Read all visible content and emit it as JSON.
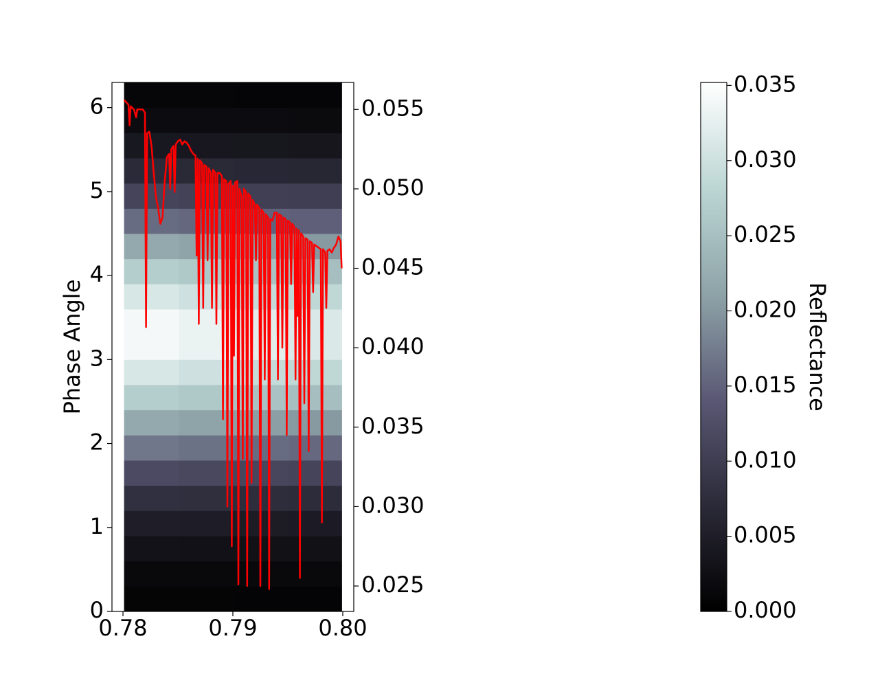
{
  "chart_data": {
    "type": "heatmap",
    "ylabel": "Phase Angle",
    "xlim": [
      0.779,
      0.801
    ],
    "xticks": [
      0.78,
      0.79,
      {
        "value": 0.8,
        "label": "0.80"
      }
    ],
    "ylim": [
      0,
      6.3
    ],
    "yticks": [
      0,
      1,
      2,
      3,
      4,
      5,
      6
    ],
    "y2lim": [
      0.0234,
      0.0567
    ],
    "y2ticks": [
      {
        "value": 0.025,
        "label": "0.025"
      },
      {
        "value": 0.03,
        "label": "0.030"
      },
      {
        "value": 0.035,
        "label": "0.035"
      },
      {
        "value": 0.04,
        "label": "0.040"
      },
      {
        "value": 0.045,
        "label": "0.045"
      },
      {
        "value": 0.05,
        "label": "0.050"
      },
      0.055
    ],
    "x_edges": [
      0.7801,
      0.7851,
      0.7901,
      0.7951,
      0.7999
    ],
    "y_edges": [
      0,
      0.3,
      0.6,
      0.9,
      1.2,
      1.5,
      1.8,
      2.1,
      2.4,
      2.7,
      3.0,
      3.3,
      3.6,
      3.9,
      4.2,
      4.5,
      4.8,
      5.1,
      5.4,
      5.7,
      6.0,
      6.3
    ],
    "z": [
      [
        0.0008,
        0.0008,
        0.0007,
        0.0007
      ],
      [
        0.0015,
        0.0015,
        0.0014,
        0.0014
      ],
      [
        0.003,
        0.0029,
        0.0028,
        0.0028
      ],
      [
        0.005,
        0.0049,
        0.0047,
        0.0046
      ],
      [
        0.008,
        0.0078,
        0.0075,
        0.0074
      ],
      [
        0.012,
        0.0116,
        0.0113,
        0.011
      ],
      [
        0.017,
        0.0165,
        0.016,
        0.0156
      ],
      [
        0.022,
        0.0213,
        0.0207,
        0.0202
      ],
      [
        0.027,
        0.0262,
        0.0254,
        0.0248
      ],
      [
        0.031,
        0.0301,
        0.0291,
        0.0285
      ],
      [
        0.034,
        0.033,
        0.032,
        0.0313
      ],
      [
        0.034,
        0.033,
        0.032,
        0.0313
      ],
      [
        0.031,
        0.0301,
        0.0291,
        0.0285
      ],
      [
        0.027,
        0.0262,
        0.0254,
        0.0248
      ],
      [
        0.022,
        0.0213,
        0.0207,
        0.0202
      ],
      [
        0.016,
        0.0155,
        0.015,
        0.0147
      ],
      [
        0.011,
        0.0107,
        0.0103,
        0.0101
      ],
      [
        0.007,
        0.0068,
        0.0066,
        0.0064
      ],
      [
        0.004,
        0.0039,
        0.0038,
        0.0037
      ],
      [
        0.002,
        0.0019,
        0.0019,
        0.0018
      ],
      [
        0.001,
        0.001,
        0.0009,
        0.0009
      ]
    ],
    "colormap_colors": [
      "#000000",
      "#2b2a38",
      "#5a5874",
      "#8ea3a8",
      "#bcd6d4",
      "#ffffff"
    ],
    "colorbar": {
      "label": "Reflectance",
      "lim": [
        0,
        0.0352
      ],
      "ticks": [
        {
          "value": 0,
          "label": "0.000"
        },
        {
          "value": 0.005,
          "label": "0.005"
        },
        {
          "value": 0.01,
          "label": "0.010"
        },
        {
          "value": 0.015,
          "label": "0.015"
        },
        {
          "value": 0.02,
          "label": "0.020"
        },
        {
          "value": 0.025,
          "label": "0.025"
        },
        {
          "value": 0.03,
          "label": "0.030"
        },
        {
          "value": 0.035,
          "label": "0.035"
        }
      ]
    },
    "x": [
      0.7801,
      0.7805,
      0.7806,
      0.7807,
      0.781,
      0.7812,
      0.7813,
      0.7818,
      0.782,
      0.7821,
      0.7822,
      0.7824,
      0.7826,
      0.7828,
      0.783,
      0.7832,
      0.7834,
      0.7836,
      0.7838,
      0.784,
      0.7842,
      0.7843,
      0.7844,
      0.7846,
      0.7847,
      0.7848,
      0.785,
      0.7852,
      0.7854,
      0.7856,
      0.7858,
      0.786,
      0.7862,
      0.7864,
      0.7866,
      0.7867,
      0.7868,
      0.7869,
      0.787,
      0.7872,
      0.7873,
      0.7874,
      0.7876,
      0.7877,
      0.7878,
      0.788,
      0.7881,
      0.7882,
      0.7884,
      0.7885,
      0.7886,
      0.7888,
      0.789,
      0.7891,
      0.7892,
      0.7894,
      0.7895,
      0.7896,
      0.7898,
      0.7899,
      0.79,
      0.7901,
      0.7902,
      0.7904,
      0.7905,
      0.7906,
      0.7908,
      0.7909,
      0.791,
      0.7912,
      0.7913,
      0.7914,
      0.7916,
      0.7917,
      0.7918,
      0.792,
      0.7921,
      0.7922,
      0.7924,
      0.7925,
      0.7926,
      0.7928,
      0.7929,
      0.793,
      0.7932,
      0.7933,
      0.7934,
      0.7936,
      0.7938,
      0.794,
      0.7941,
      0.7942,
      0.7944,
      0.7945,
      0.7946,
      0.7948,
      0.7949,
      0.795,
      0.7952,
      0.7953,
      0.7954,
      0.7956,
      0.7957,
      0.7958,
      0.7959,
      0.796,
      0.7961,
      0.7962,
      0.7964,
      0.7965,
      0.7966,
      0.7968,
      0.7969,
      0.797,
      0.7972,
      0.7973,
      0.7974,
      0.7976,
      0.7978,
      0.798,
      0.7981,
      0.7982,
      0.7984,
      0.7985,
      0.7986,
      0.7988,
      0.799,
      0.7992,
      0.7994,
      0.7996,
      0.7998,
      0.7999
    ],
    "series": [
      {
        "color": "#ff0000",
        "axis": "y2",
        "values": [
          0.0556,
          0.0553,
          0.054,
          0.0552,
          0.055,
          0.0545,
          0.055,
          0.055,
          0.0548,
          0.0413,
          0.0535,
          0.0536,
          0.0527,
          0.051,
          0.0495,
          0.0488,
          0.0478,
          0.0482,
          0.0505,
          0.052,
          0.0522,
          0.05,
          0.0525,
          0.0527,
          0.0498,
          0.0528,
          0.053,
          0.0531,
          0.0528,
          0.053,
          0.0529,
          0.0527,
          0.0524,
          0.0522,
          0.0521,
          0.0458,
          0.0519,
          0.0415,
          0.0518,
          0.0516,
          0.0425,
          0.0515,
          0.0514,
          0.0455,
          0.0513,
          0.051,
          0.0425,
          0.0512,
          0.051,
          0.0415,
          0.051,
          0.051,
          0.0508,
          0.0355,
          0.0506,
          0.0505,
          0.03,
          0.0503,
          0.0505,
          0.0275,
          0.0502,
          0.0395,
          0.0504,
          0.0505,
          0.0251,
          0.05,
          0.0495,
          0.033,
          0.05,
          0.0498,
          0.025,
          0.0497,
          0.0495,
          0.0315,
          0.0493,
          0.049,
          0.0455,
          0.049,
          0.0488,
          0.025,
          0.0487,
          0.0485,
          0.038,
          0.0484,
          0.0482,
          0.0248,
          0.0481,
          0.048,
          0.0485,
          0.0485,
          0.038,
          0.0484,
          0.0483,
          0.04,
          0.0482,
          0.0481,
          0.0345,
          0.048,
          0.0479,
          0.044,
          0.0478,
          0.0476,
          0.038,
          0.0475,
          0.042,
          0.0474,
          0.0255,
          0.0472,
          0.047,
          0.0365,
          0.0469,
          0.0468,
          0.0335,
          0.0467,
          0.0466,
          0.0435,
          0.0465,
          0.0464,
          0.0463,
          0.0462,
          0.029,
          0.0462,
          0.046,
          0.0425,
          0.0461,
          0.0462,
          0.046,
          0.0463,
          0.0465,
          0.047,
          0.0467,
          0.045
        ]
      }
    ]
  }
}
